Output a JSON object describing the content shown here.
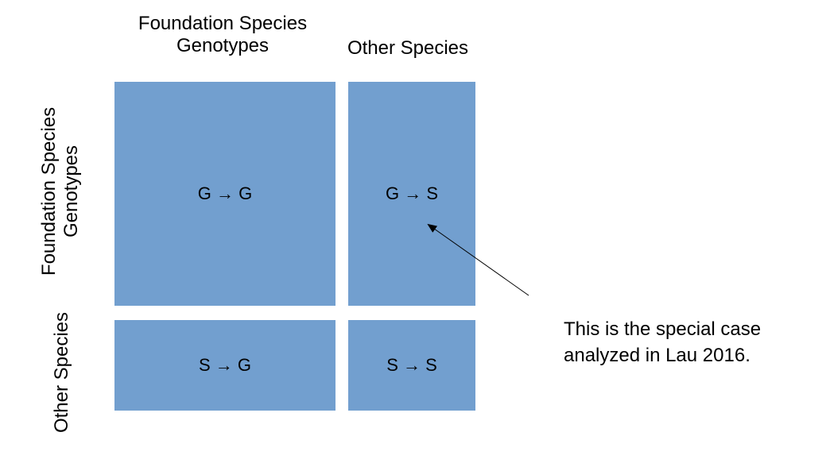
{
  "columns": {
    "foundation_line1": "Foundation Species",
    "foundation_line2": "Genotypes",
    "other": "Other Species"
  },
  "rows": {
    "foundation_line1": "Foundation Species",
    "foundation_line2": "Genotypes",
    "other": "Other Species"
  },
  "cells": {
    "gg": "G → G",
    "gs": "G → S",
    "sg": "S → G",
    "ss": "S → S"
  },
  "annotation": {
    "line1": "This is the special case",
    "line2": "analyzed in Lau 2016."
  },
  "colors": {
    "cell_fill": "#729fcf",
    "text": "#000000"
  }
}
